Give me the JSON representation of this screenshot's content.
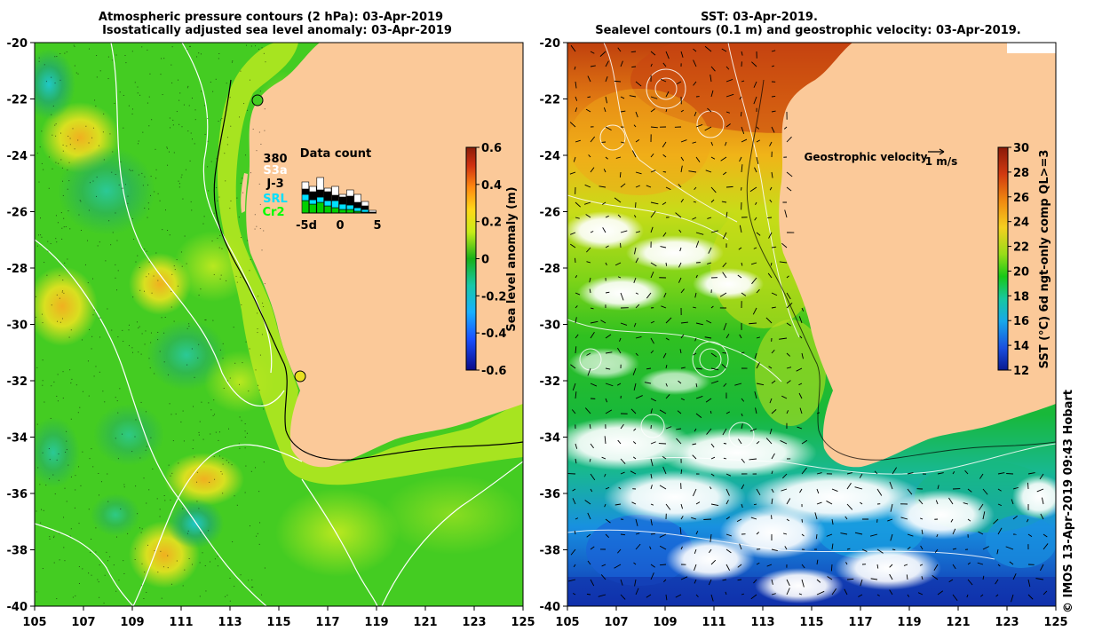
{
  "left_panel": {
    "title_line1": "Atmospheric pressure contours (2 hPa): 03-Apr-2019",
    "title_line2": "Isostatically adjusted sea level anomaly: 03-Apr-2019",
    "colorbar": {
      "label": "Sea level anomaly (m)",
      "ticks": [
        "0.6",
        "0.4",
        "0.2",
        "0",
        "-0.2",
        "-0.4",
        "-0.6"
      ]
    },
    "data_count": {
      "title": "Data count",
      "total": "380",
      "legend": [
        {
          "name": "S3a",
          "color": "#ffffff"
        },
        {
          "name": "J-3",
          "color": "#000000"
        },
        {
          "name": "SRL",
          "color": "#00e0ff"
        },
        {
          "name": "Cr2",
          "color": "#00d000"
        }
      ],
      "axis_labels": [
        "-5d",
        "0",
        "5"
      ]
    },
    "y_ticks": [
      "-20",
      "-22",
      "-24",
      "-26",
      "-28",
      "-30",
      "-32",
      "-34",
      "-36",
      "-38",
      "-40"
    ],
    "x_ticks": [
      "105",
      "107",
      "109",
      "111",
      "113",
      "115",
      "117",
      "119",
      "121",
      "123",
      "125"
    ]
  },
  "right_panel": {
    "title_line1": "SST: 03-Apr-2019.",
    "title_line2": "Sealevel contours (0.1 m) and geostrophic velocity: 03-Apr-2019.",
    "velocity_legend": "Geostrophic velocity",
    "velocity_scale": "1 m/s",
    "colorbar": {
      "label": "SST (°C) 6d ngt-only comp QL>=3",
      "ticks": [
        "30",
        "28",
        "26",
        "24",
        "22",
        "20",
        "18",
        "16",
        "14",
        "12"
      ]
    },
    "y_ticks": [
      "-20",
      "-22",
      "-24",
      "-26",
      "-28",
      "-30",
      "-32",
      "-34",
      "-36",
      "-38",
      "-40"
    ],
    "x_ticks": [
      "105",
      "107",
      "109",
      "111",
      "113",
      "115",
      "117",
      "119",
      "121",
      "123",
      "125"
    ]
  },
  "credit": "© IMOS 13-Apr-2019 09:43 Hobart",
  "colors": {
    "land": "#fbc999",
    "sla_background": "#44cc22",
    "sst_warm": "#c83a0a",
    "sst_cold": "#0a2aa0"
  }
}
